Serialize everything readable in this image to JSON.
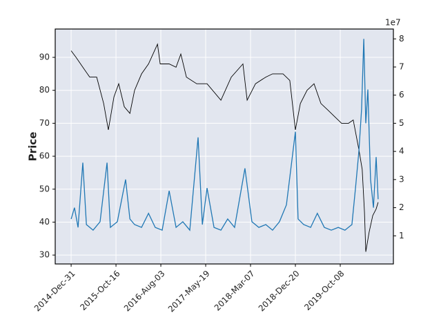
{
  "chart_data": {
    "type": "line",
    "ylabel": "Price",
    "xlim": [
      -71,
      1437
    ],
    "xticks": [
      {
        "value": 0,
        "label": "2014-Dec-31"
      },
      {
        "value": 200,
        "label": "2015-Oct-16"
      },
      {
        "value": 400,
        "label": "2016-Aug-03"
      },
      {
        "value": 600,
        "label": "2017-May-19"
      },
      {
        "value": 800,
        "label": "2018-Mar-07"
      },
      {
        "value": 1000,
        "label": "2018-Dec-20"
      },
      {
        "value": 1200,
        "label": "2019-Oct-08"
      }
    ],
    "ylim": [
      27.3,
      98.6
    ],
    "yticks": [
      30,
      40,
      50,
      60,
      70,
      80,
      90
    ],
    "y2lim": [
      0,
      8.35
    ],
    "y2ticks": [
      1,
      2,
      3,
      4,
      5,
      6,
      7,
      8
    ],
    "y2_offset_label": "1e7",
    "grid": true,
    "series": [
      {
        "color": "#000000",
        "axis": "y",
        "x": [
          0,
          22,
          52,
          83,
          114,
          145,
          166,
          191,
          212,
          237,
          262,
          283,
          314,
          345,
          385,
          397,
          437,
          468,
          489,
          514,
          560,
          606,
          668,
          714,
          766,
          785,
          822,
          868,
          898,
          945,
          975,
          1000,
          1022,
          1052,
          1083,
          1114,
          1145,
          1175,
          1206,
          1237,
          1258,
          1283,
          1298,
          1308,
          1314,
          1329,
          1345,
          1360,
          1369
        ],
        "values": [
          92,
          90,
          87,
          84,
          84,
          76,
          68,
          78,
          82,
          75,
          73,
          80,
          85,
          88,
          94,
          88,
          88,
          87,
          91,
          84,
          82,
          82,
          77,
          84,
          88,
          77,
          82,
          84,
          85,
          85,
          83,
          68,
          76,
          80,
          82,
          76,
          74,
          72,
          70,
          70,
          71,
          62,
          56,
          43,
          31,
          37,
          42,
          44,
          46
        ]
      },
      {
        "color": "#1f77b4",
        "axis": "y2",
        "x": [
          0,
          15,
          31,
          52,
          68,
          98,
          129,
          160,
          175,
          206,
          243,
          262,
          283,
          314,
          345,
          375,
          406,
          437,
          468,
          498,
          529,
          566,
          585,
          606,
          637,
          668,
          698,
          729,
          775,
          806,
          837,
          868,
          898,
          929,
          960,
          1000,
          1012,
          1037,
          1068,
          1098,
          1129,
          1160,
          1191,
          1221,
          1252,
          1268,
          1283,
          1295,
          1305,
          1314,
          1323,
          1335,
          1348,
          1360,
          1369
        ],
        "values": [
          1.6,
          2.0,
          1.3,
          3.6,
          1.4,
          1.2,
          1.5,
          3.6,
          1.3,
          1.5,
          3.0,
          1.6,
          1.4,
          1.3,
          1.8,
          1.3,
          1.2,
          2.6,
          1.3,
          1.5,
          1.2,
          4.5,
          1.4,
          2.7,
          1.3,
          1.2,
          1.6,
          1.3,
          3.4,
          1.5,
          1.3,
          1.4,
          1.2,
          1.5,
          2.1,
          4.7,
          1.6,
          1.4,
          1.3,
          1.8,
          1.3,
          1.2,
          1.3,
          1.2,
          1.4,
          2.7,
          4.0,
          5.5,
          8.0,
          5.0,
          6.2,
          3.0,
          2.0,
          3.8,
          2.3
        ]
      }
    ]
  }
}
